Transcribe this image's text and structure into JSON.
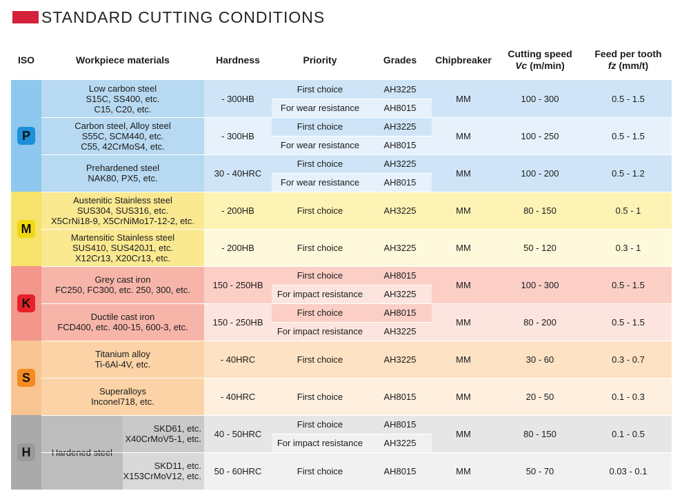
{
  "title": "STANDARD CUTTING CONDITIONS",
  "headers": {
    "iso": "ISO",
    "materials": "Workpiece materials",
    "hardness": "Hardness",
    "priority": "Priority",
    "grades": "Grades",
    "chipbreaker": "Chipbreaker",
    "speed_title": "Cutting speed",
    "speed_var": "Vc",
    "speed_unit": " (m/min)",
    "feed_title": "Feed per tooth",
    "feed_var": "fz",
    "feed_unit": " (mm/t)"
  },
  "groups": [
    {
      "iso": "P",
      "color_badge": "#1b8fd8"
    },
    {
      "iso": "M",
      "color_badge": "#f2d812"
    },
    {
      "iso": "K",
      "color_badge": "#e8202a"
    },
    {
      "iso": "S",
      "color_badge": "#f58a20"
    },
    {
      "iso": "H",
      "color_badge": "#9a9a9a"
    }
  ],
  "rows": [
    {
      "material": [
        "Low carbon steel",
        "S15C, SS400, etc.",
        "C15, C20, etc."
      ],
      "hardness": "- 300HB",
      "choices": [
        {
          "priority": "First choice",
          "grade": "AH3225"
        },
        {
          "priority": "For wear resistance",
          "grade": "AH8015"
        }
      ],
      "chipbreaker": "MM",
      "speed": "100 - 300",
      "feed": "0.5 - 1.5"
    },
    {
      "material": [
        "Carbon steel, Alloy steel",
        "S55C, SCM440, etc.",
        "C55, 42CrMoS4, etc."
      ],
      "hardness": "- 300HB",
      "choices": [
        {
          "priority": "First choice",
          "grade": "AH3225"
        },
        {
          "priority": "For wear resistance",
          "grade": "AH8015"
        }
      ],
      "chipbreaker": "MM",
      "speed": "100 - 250",
      "feed": "0.5 - 1.5"
    },
    {
      "material": [
        "Prehardened steel",
        "NAK80, PX5, etc."
      ],
      "hardness": "30 - 40HRC",
      "choices": [
        {
          "priority": "First choice",
          "grade": "AH3225"
        },
        {
          "priority": "For wear resistance",
          "grade": "AH8015"
        }
      ],
      "chipbreaker": "MM",
      "speed": "100 - 200",
      "feed": "0.5 - 1.2"
    },
    {
      "material": [
        "Austenitic Stainless steel",
        "SUS304, SUS316, etc.",
        "X5CrNi18-9, X5CrNiMo17-12-2, etc."
      ],
      "hardness": "- 200HB",
      "choices": [
        {
          "priority": "First choice",
          "grade": "AH3225"
        }
      ],
      "chipbreaker": "MM",
      "speed": "80 - 150",
      "feed": "0.5 - 1"
    },
    {
      "material": [
        "Martensitic Stainless steel",
        "SUS410, SUS420J1, etc.",
        "X12Cr13, X20Cr13, etc."
      ],
      "hardness": "- 200HB",
      "choices": [
        {
          "priority": "First choice",
          "grade": "AH3225"
        }
      ],
      "chipbreaker": "MM",
      "speed": "50 - 120",
      "feed": "0.3 - 1"
    },
    {
      "material": [
        "Grey cast iron",
        "FC250, FC300, etc. 250, 300, etc."
      ],
      "hardness": "150 - 250HB",
      "choices": [
        {
          "priority": "First choice",
          "grade": "AH8015"
        },
        {
          "priority": "For impact resistance",
          "grade": "AH3225"
        }
      ],
      "chipbreaker": "MM",
      "speed": "100 - 300",
      "feed": "0.5 - 1.5"
    },
    {
      "material": [
        "Ductile cast iron",
        "FCD400, etc. 400-15, 600-3, etc."
      ],
      "hardness": "150 - 250HB",
      "choices": [
        {
          "priority": "First choice",
          "grade": "AH8015"
        },
        {
          "priority": "For impact resistance",
          "grade": "AH3225"
        }
      ],
      "chipbreaker": "MM",
      "speed": "80 - 200",
      "feed": "0.5 - 1.5"
    },
    {
      "material": [
        "Titanium alloy",
        "Ti-6Al-4V, etc."
      ],
      "hardness": "- 40HRC",
      "choices": [
        {
          "priority": "First choice",
          "grade": "AH3225"
        }
      ],
      "chipbreaker": "MM",
      "speed": "30 - 60",
      "feed": "0.3 - 0.7"
    },
    {
      "material": [
        "Superalloys",
        "Inconel718, etc."
      ],
      "hardness": "- 40HRC",
      "choices": [
        {
          "priority": "First choice",
          "grade": "AH8015"
        }
      ],
      "chipbreaker": "MM",
      "speed": "20 - 50",
      "feed": "0.1 - 0.3"
    },
    {
      "material": [
        "SKD61, etc.",
        "X40CrMoV5-1, etc."
      ],
      "hardness": "40 - 50HRC",
      "choices": [
        {
          "priority": "First choice",
          "grade": "AH8015"
        },
        {
          "priority": "For impact resistance",
          "grade": "AH3225"
        }
      ],
      "chipbreaker": "MM",
      "speed": "80 - 150",
      "feed": "0.1 - 0.5"
    },
    {
      "material": [
        "SKD11, etc.",
        "X153CrMoV12, etc."
      ],
      "hardness": "50 - 60HRC",
      "choices": [
        {
          "priority": "First choice",
          "grade": "AH8015"
        }
      ],
      "chipbreaker": "MM",
      "speed": "50 - 70",
      "feed": "0.03 - 0.1"
    }
  ],
  "hardened_steel_label": "Hardened steel"
}
